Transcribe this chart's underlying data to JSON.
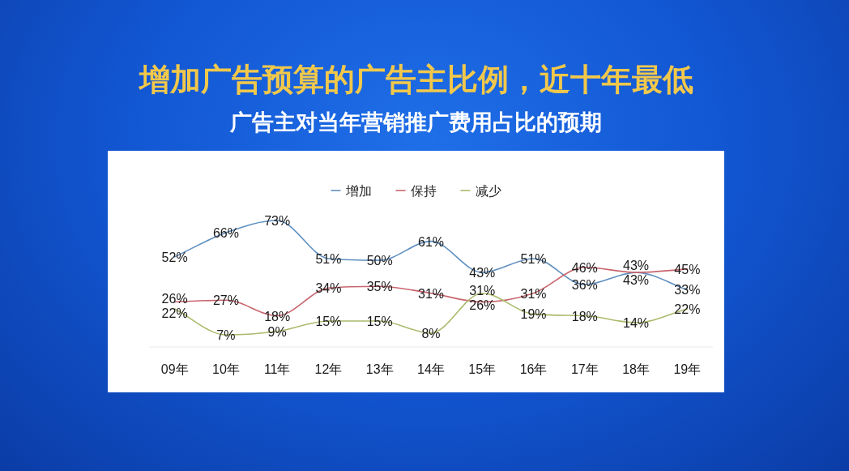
{
  "chart_data": {
    "type": "line",
    "title": "增加广告预算的广告主比例，近十年最低",
    "subtitle": "广告主对当年营销推广费用占比的预期",
    "categories": [
      "09年",
      "10年",
      "11年",
      "12年",
      "13年",
      "14年",
      "15年",
      "16年",
      "17年",
      "18年",
      "19年"
    ],
    "series": [
      {
        "name": "增加",
        "color": "#5f8fc0",
        "values": [
          52,
          66,
          73,
          51,
          50,
          61,
          43,
          51,
          36,
          43,
          33
        ],
        "value_labels": [
          "52%",
          "66%",
          "73%",
          "51%",
          "50%",
          "61%",
          "43%",
          "51%",
          "36%",
          "43%",
          "33%"
        ]
      },
      {
        "name": "保持",
        "color": "#c9646d",
        "values": [
          26,
          27,
          18,
          34,
          35,
          31,
          26,
          31,
          46,
          43,
          45
        ],
        "value_labels": [
          "26%",
          "27%",
          "18%",
          "34%",
          "35%",
          "31%",
          "26%",
          "31%",
          "46%",
          "43%",
          "45%"
        ]
      },
      {
        "name": "减少",
        "color": "#a9bb6a",
        "values": [
          22,
          7,
          9,
          15,
          15,
          8,
          31,
          19,
          18,
          14,
          22
        ],
        "value_labels": [
          "22%",
          "7%",
          "9%",
          "15%",
          "15%",
          "8%",
          "31%",
          "19%",
          "18%",
          "14%",
          "22%"
        ]
      }
    ],
    "legend": "top",
    "tick_labels": "x"
  }
}
